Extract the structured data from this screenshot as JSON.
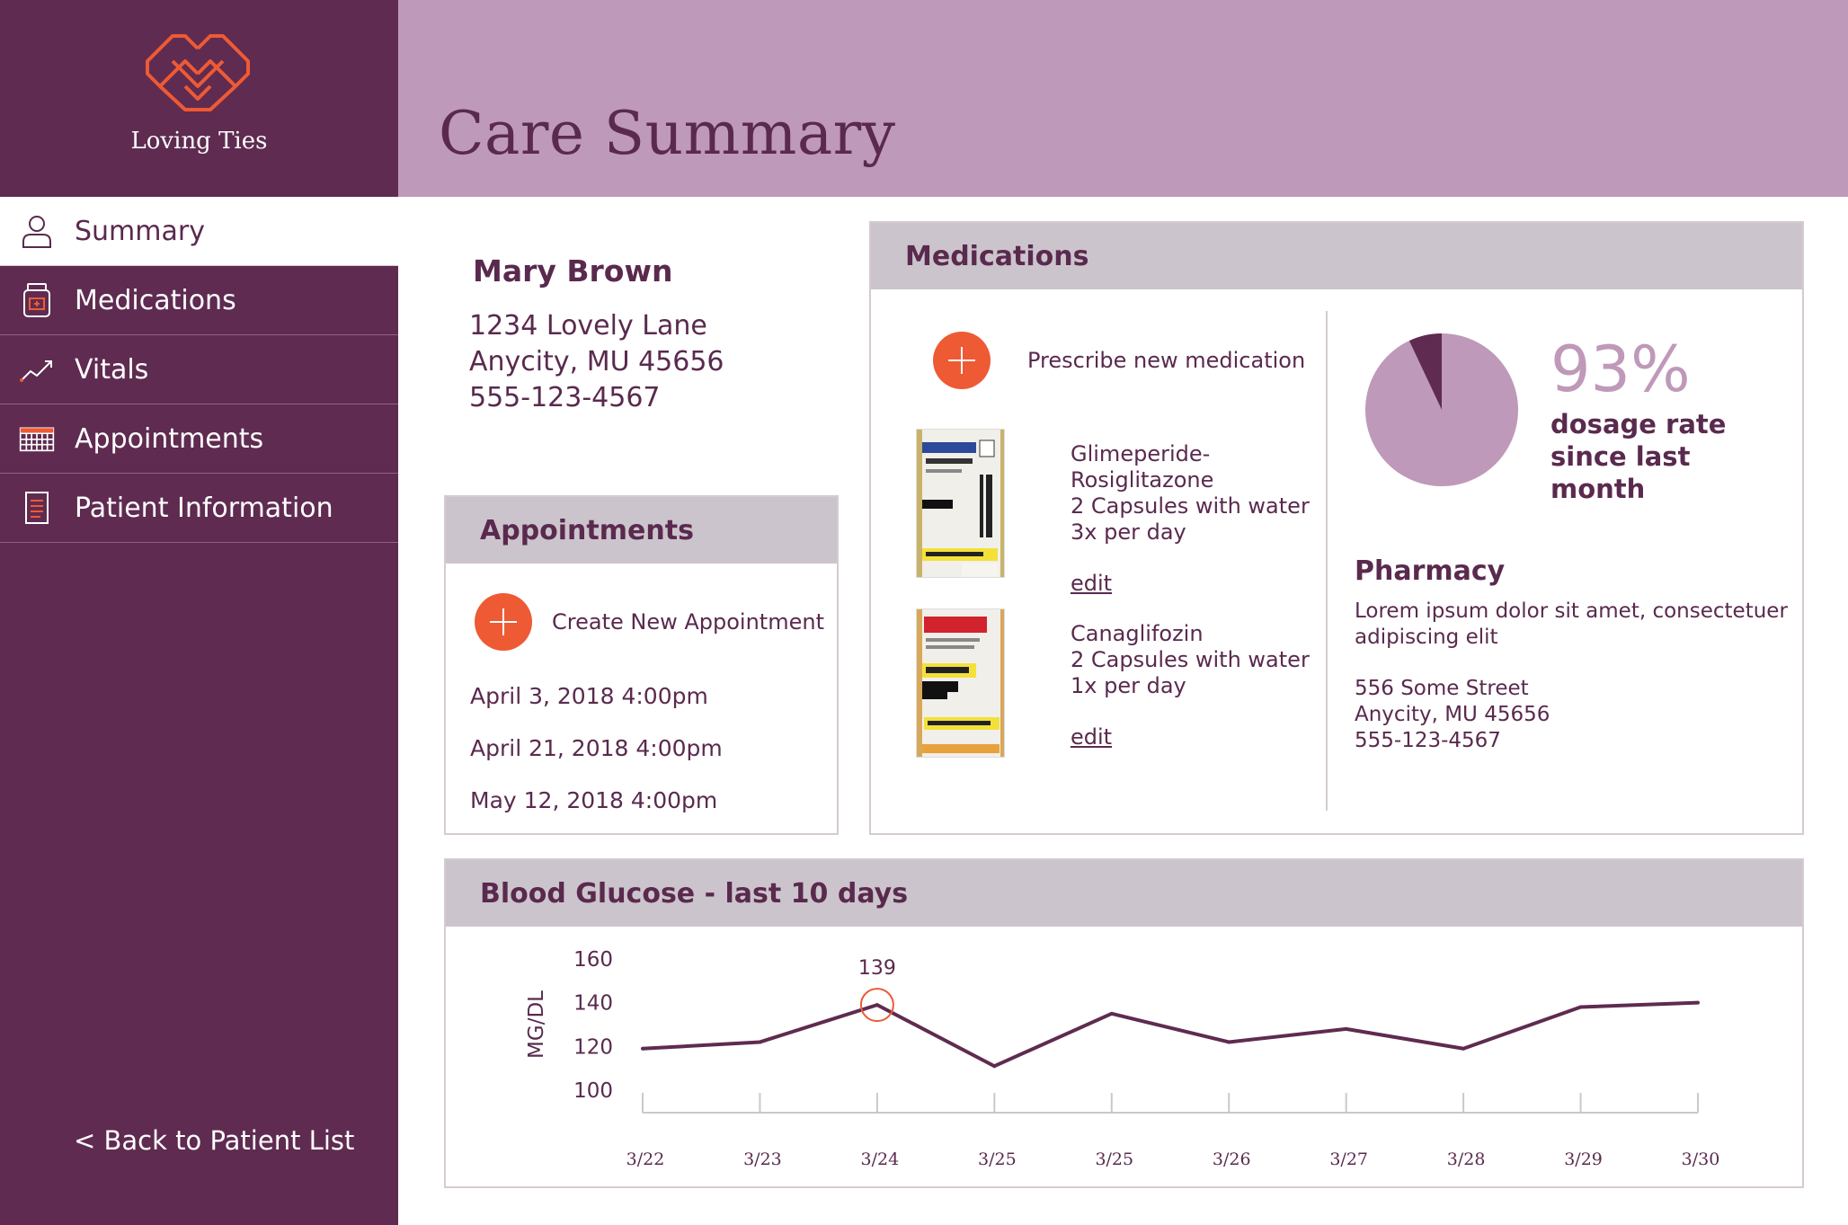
{
  "brand": {
    "name": "Loving Ties",
    "logo_icon": "interlocking-hearts-logo"
  },
  "nav": {
    "items": [
      {
        "label": "Summary",
        "icon": "person-icon",
        "active": true
      },
      {
        "label": "Medications",
        "icon": "pill-bottle-icon",
        "active": false
      },
      {
        "label": "Vitals",
        "icon": "trend-chart-icon",
        "active": false
      },
      {
        "label": "Appointments",
        "icon": "calendar-icon",
        "active": false
      },
      {
        "label": "Patient Information",
        "icon": "document-icon",
        "active": false
      }
    ],
    "back_label": "<  Back to Patient List"
  },
  "header": {
    "title": "Care Summary"
  },
  "patient": {
    "name": "Mary Brown",
    "address1": "1234 Lovely Lane",
    "address2": "Anycity, MU 45656",
    "phone": "555-123-4567"
  },
  "appointments": {
    "title": "Appointments",
    "add_label": "Create New Appointment",
    "items": [
      "April 3, 2018 4:00pm",
      "April 21, 2018 4:00pm",
      "May 12, 2018 4:00pm"
    ]
  },
  "medications": {
    "title": "Medications",
    "add_label": "Prescribe new medication",
    "items": [
      {
        "name": "Glimeperide-Rosiglitazone",
        "dose": "2 Capsules with water 3x per day",
        "edit_label": "edit",
        "thumb_icon": "pharmacy-bottle-label"
      },
      {
        "name": "Canaglifozin",
        "dose": "2 Capsules with water 1x per day",
        "edit_label": "edit",
        "thumb_icon": "costco-bottle-label"
      }
    ],
    "dosage": {
      "value": 93,
      "percent_label": "93%",
      "label": "dosage rate since last month"
    },
    "pharmacy": {
      "title": "Pharmacy",
      "description": "Lorem ipsum dolor sit amet, consectetuer adipiscing elit",
      "street": "556 Some Street",
      "city": "Anycity, MU 45656",
      "phone": "555-123-4567"
    }
  },
  "glucose": {
    "title": "Blood Glucose - last 10 days"
  },
  "colors": {
    "sidebar": "#5f2b50",
    "header": "#bf99b9",
    "accent": "#ee5a34",
    "text": "#5a2a4e",
    "panel_head": "#ccc4cc"
  },
  "chart_data": {
    "type": "line",
    "ylabel": "MG/DL",
    "x": [
      "3/22",
      "3/23",
      "3/24",
      "3/25",
      "3/25",
      "3/26",
      "3/27",
      "3/28",
      "3/29",
      "3/30"
    ],
    "values": [
      119,
      122,
      139,
      111,
      135,
      122,
      128,
      119,
      138,
      140
    ],
    "yticks": [
      160,
      140,
      120,
      100
    ],
    "ylim": [
      100,
      160
    ],
    "highlight": {
      "index": 2,
      "label": "139"
    },
    "color": "#5f2b50"
  }
}
